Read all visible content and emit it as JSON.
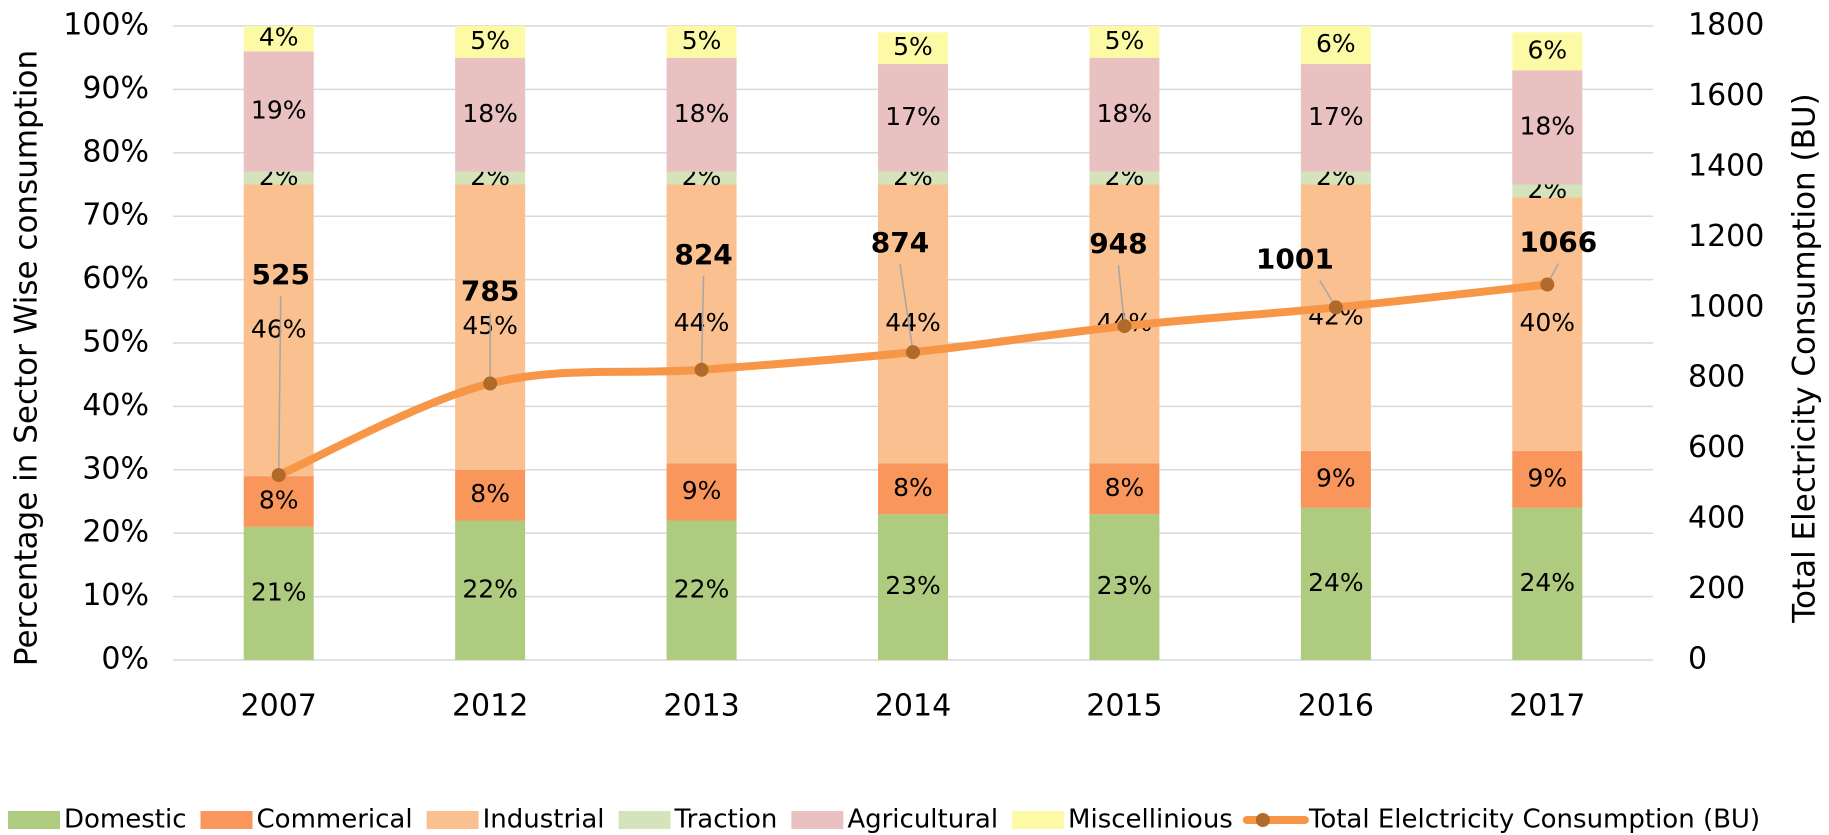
{
  "chart_data": {
    "type": "bar",
    "stacked": true,
    "categories": [
      "2007",
      "2012",
      "2013",
      "2014",
      "2015",
      "2016",
      "2017"
    ],
    "ylabel": "Percentage in Sector Wise consumption",
    "y2label": "Total Electricity Consumption (BU)",
    "ylim": [
      0,
      100
    ],
    "yticks": [
      {
        "value": 0,
        "label": "0%"
      },
      {
        "value": 10,
        "label": "10%"
      },
      {
        "value": 20,
        "label": "20%"
      },
      {
        "value": 30,
        "label": "30%"
      },
      {
        "value": 40,
        "label": "40%"
      },
      {
        "value": 50,
        "label": "50%"
      },
      {
        "value": 60,
        "label": "60%"
      },
      {
        "value": 70,
        "label": "70%"
      },
      {
        "value": 80,
        "label": "80%"
      },
      {
        "value": 90,
        "label": "90%"
      },
      {
        "value": 100,
        "label": "100%"
      }
    ],
    "y2lim": [
      0,
      1800
    ],
    "y2ticks": [
      0,
      200,
      400,
      600,
      800,
      1000,
      1200,
      1400,
      1600,
      1800
    ],
    "grid": true,
    "legend": "bottom",
    "series": [
      {
        "name": "Domestic",
        "color": "#afcb7f",
        "values": [
          21,
          22,
          22,
          23,
          23,
          24,
          24
        ],
        "value_labels": [
          "21%",
          "22%",
          "22%",
          "23%",
          "23%",
          "24%",
          "24%"
        ]
      },
      {
        "name": "Commerical",
        "color": "#f9965c",
        "values": [
          8,
          8,
          9,
          8,
          8,
          9,
          9
        ],
        "value_labels": [
          "8%",
          "8%",
          "9%",
          "8%",
          "8%",
          "9%",
          "9%"
        ]
      },
      {
        "name": "Industrial",
        "color": "#fac08f",
        "values": [
          46,
          45,
          44,
          44,
          44,
          42,
          40
        ],
        "value_labels": [
          "46%",
          "45%",
          "44%",
          "44%",
          "44%",
          "42%",
          "40%"
        ]
      },
      {
        "name": "Traction",
        "color": "#d5e3bb",
        "values": [
          2,
          2,
          2,
          2,
          2,
          2,
          2
        ],
        "value_labels": [
          "2%",
          "2%",
          "2%",
          "2%",
          "2%",
          "2%",
          "2%"
        ]
      },
      {
        "name": "Agricultural",
        "color": "#e8c1c0",
        "values": [
          19,
          18,
          18,
          17,
          18,
          17,
          18
        ],
        "value_labels": [
          "19%",
          "18%",
          "18%",
          "17%",
          "18%",
          "17%",
          "18%"
        ]
      },
      {
        "name": "Miscellinious",
        "color": "#fdfaa6",
        "values": [
          4,
          5,
          5,
          5,
          5,
          6,
          6
        ],
        "value_labels": [
          "4%",
          "5%",
          "5%",
          "5%",
          "5%",
          "6%",
          "6%"
        ]
      },
      {
        "name": "Total Elelctricity Consumption (BU)",
        "type": "line",
        "axis": "y2",
        "color": "#f79646",
        "marker_color": "#b06a2a",
        "values": [
          525,
          785,
          824,
          874,
          948,
          1001,
          1066
        ]
      }
    ]
  }
}
